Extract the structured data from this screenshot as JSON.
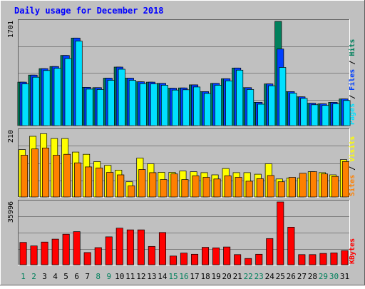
{
  "chart_data": {
    "type": "bar",
    "title": "Daily usage for December 2018",
    "categories": [
      "1",
      "2",
      "3",
      "4",
      "5",
      "6",
      "7",
      "8",
      "9",
      "10",
      "11",
      "12",
      "13",
      "14",
      "15",
      "16",
      "17",
      "18",
      "19",
      "20",
      "21",
      "22",
      "23",
      "24",
      "25",
      "26",
      "27",
      "28",
      "29",
      "30",
      "31"
    ],
    "weekend_days": [
      "1",
      "2",
      "8",
      "9",
      "15",
      "16",
      "22",
      "23",
      "29",
      "30"
    ],
    "panels": [
      {
        "id": "hits",
        "ymax_label": "1701",
        "ymax": 1701,
        "legend": [
          {
            "text": "Pages",
            "color": "#00e0ff"
          },
          {
            "text": "Files",
            "color": "#0040ff"
          },
          {
            "text": "Hits",
            "color": "#00805c"
          }
        ],
        "separator": "/",
        "series": [
          {
            "name": "Hits",
            "color": "#00805c",
            "values": [
              710,
              825,
              930,
              965,
              1145,
              1430,
              625,
              620,
              775,
              955,
              775,
              715,
              710,
              690,
              610,
              615,
              665,
              555,
              690,
              765,
              940,
              620,
              380,
              680,
              1701,
              555,
              470,
              365,
              355,
              380,
              435
            ]
          },
          {
            "name": "Files",
            "color": "#0040ff",
            "values": [
              710,
              825,
              930,
              965,
              1145,
              1430,
              625,
              620,
              775,
              955,
              775,
              715,
              710,
              690,
              610,
              615,
              665,
              555,
              690,
              765,
              940,
              620,
              380,
              680,
              1250,
              555,
              470,
              365,
              355,
              380,
              435
            ]
          },
          {
            "name": "Pages",
            "color": "#00e0ff",
            "values": [
              680,
              790,
              900,
              935,
              1095,
              1380,
              595,
              590,
              740,
              920,
              740,
              685,
              680,
              660,
              580,
              585,
              630,
              525,
              660,
              730,
              905,
              590,
              350,
              650,
              950,
              530,
              445,
              340,
              330,
              355,
              410
            ]
          }
        ]
      },
      {
        "id": "visits",
        "ymax_label": "210",
        "ymax": 210,
        "legend": [
          {
            "text": "Sites",
            "color": "#ff8000"
          },
          {
            "text": "Visits",
            "color": "#ffff00"
          }
        ],
        "separator": "/",
        "series": [
          {
            "name": "Visits",
            "color": "#ffff00",
            "values": [
              150,
              192,
              200,
              185,
              185,
              142,
              135,
              112,
              100,
              85,
              48,
              123,
              105,
              78,
              78,
              82,
              80,
              77,
              70,
              90,
              77,
              77,
              72,
              105,
              57,
              60,
              60,
              80,
              77,
              70,
              118
            ]
          },
          {
            "name": "Sites",
            "color": "#ff8000",
            "values": [
              132,
              152,
              155,
              132,
              135,
              108,
              95,
              92,
              78,
              70,
              35,
              87,
              77,
              55,
              73,
              55,
              67,
              62,
              57,
              67,
              62,
              50,
              58,
              68,
              48,
              62,
              75,
              80,
              73,
              65,
              112
            ]
          }
        ]
      },
      {
        "id": "kbytes",
        "ymax_label": "35996",
        "ymax": 35996,
        "legend": [
          {
            "text": "KBytes",
            "color": "#ff0000"
          }
        ],
        "separator": "",
        "series": [
          {
            "name": "KBytes",
            "color": "#ff0000",
            "values": [
              12800,
              10800,
              13000,
              14700,
              17500,
              19000,
              7000,
              9800,
              16000,
              21000,
              20000,
              20000,
              10500,
              18500,
              5000,
              6700,
              6000,
              10000,
              9700,
              10200,
              5800,
              3600,
              6000,
              15000,
              35996,
              21500,
              5800,
              5800,
              6500,
              6800,
              8100
            ]
          }
        ]
      }
    ]
  },
  "colors": {
    "background": "#c0c0c0",
    "plot_area": "#c0c0c0",
    "grid": "#808080",
    "title": "#0000ff",
    "label_dark": "#000000",
    "label_weekend": "#00805c",
    "bar_outline": "#000000"
  }
}
